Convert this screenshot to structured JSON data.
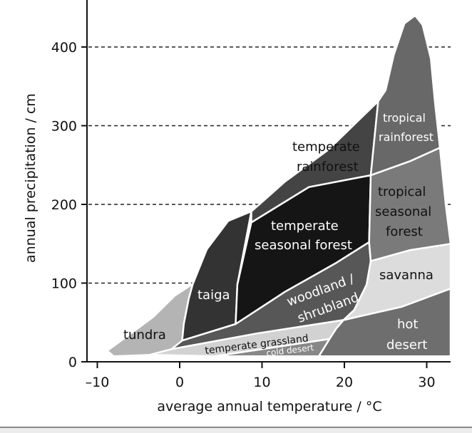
{
  "chart_data": {
    "type": "area",
    "xlabel": "average annual temperature / °C",
    "ylabel": "annual precipitation / cm",
    "xlim": [
      -11,
      33
    ],
    "ylim": [
      0,
      460
    ],
    "xticks": [
      "-10",
      "0",
      "10",
      "20",
      "30"
    ],
    "xtick_values": [
      -10,
      0,
      10,
      20,
      30
    ],
    "yticks": [
      "0",
      "100",
      "200",
      "300",
      "400"
    ],
    "ytick_values": [
      0,
      100,
      200,
      300,
      400
    ],
    "gridlines": {
      "axis": "y",
      "style": "dashed",
      "values": [
        100,
        200,
        300,
        400
      ]
    },
    "regions": [
      {
        "name": "tundra",
        "color": "#b4b4b4",
        "text_color": "#111111",
        "points": [
          [
            -8.8,
            14
          ],
          [
            -6.7,
            30
          ],
          [
            -3.2,
            57
          ],
          [
            -0.6,
            84
          ],
          [
            1.6,
            99
          ],
          [
            1.1,
            80
          ],
          [
            0.5,
            48
          ],
          [
            0.3,
            27
          ],
          [
            -0.6,
            16
          ],
          [
            -3.2,
            9
          ],
          [
            -8,
            7
          ]
        ]
      },
      {
        "name": "taiga",
        "color": "#333333",
        "text_color": "#ffffff",
        "points": [
          [
            1.6,
            99
          ],
          [
            3.3,
            143
          ],
          [
            5.9,
            179
          ],
          [
            8.7,
            191
          ],
          [
            7,
            98
          ],
          [
            6.8,
            48
          ],
          [
            0.3,
            27
          ],
          [
            0.5,
            48
          ],
          [
            1.1,
            80
          ]
        ]
      },
      {
        "name": "temperate rainforest",
        "color": "#444444",
        "text_color": "#111111",
        "points": [
          [
            8.7,
            191
          ],
          [
            12.8,
            229
          ],
          [
            18,
            269
          ],
          [
            24.1,
            331
          ],
          [
            23.2,
            237
          ],
          [
            15.7,
            222
          ],
          [
            8.7,
            177
          ]
        ]
      },
      {
        "name": "temperate seasonal forest",
        "color": "#151515",
        "text_color": "#ffffff",
        "points": [
          [
            8.7,
            177
          ],
          [
            15.7,
            222
          ],
          [
            23.2,
            237
          ],
          [
            23,
            152
          ],
          [
            18.9,
            125
          ],
          [
            12.8,
            89
          ],
          [
            6.8,
            48
          ],
          [
            7,
            98
          ]
        ]
      },
      {
        "name": "woodland / shrubland",
        "color": "#575757",
        "text_color": "#ffffff",
        "points": [
          [
            -1,
            16
          ],
          [
            0.3,
            27
          ],
          [
            6.8,
            48
          ],
          [
            12.8,
            89
          ],
          [
            18.9,
            125
          ],
          [
            23,
            152
          ],
          [
            23.2,
            128
          ],
          [
            22.7,
            98
          ],
          [
            21.2,
            66
          ],
          [
            19.9,
            53
          ],
          [
            9.4,
            36
          ]
        ]
      },
      {
        "name": "temperate grassland",
        "color": "#d2d2d2",
        "text_color": "#111111",
        "points": [
          [
            -3.6,
            9
          ],
          [
            -1,
            16
          ],
          [
            9.4,
            36
          ],
          [
            19.9,
            53
          ],
          [
            19,
            42
          ],
          [
            18.2,
            29
          ],
          [
            4.2,
            7
          ]
        ]
      },
      {
        "name": "cold desert",
        "color": "#888888",
        "text_color": "#ffffff",
        "points": [
          [
            4.2,
            7
          ],
          [
            18.2,
            29
          ],
          [
            16.9,
            7
          ]
        ]
      },
      {
        "name": "hot desert",
        "color": "#6e6e6e",
        "text_color": "#ffffff",
        "points": [
          [
            16.9,
            7
          ],
          [
            18.2,
            29
          ],
          [
            19,
            42
          ],
          [
            19.9,
            53
          ],
          [
            22.8,
            60
          ],
          [
            27,
            70
          ],
          [
            32.9,
            93
          ],
          [
            32.9,
            7
          ]
        ]
      },
      {
        "name": "savanna",
        "color": "#dcdcdc",
        "text_color": "#111111",
        "points": [
          [
            19.9,
            53
          ],
          [
            22.8,
            60
          ],
          [
            27,
            70
          ],
          [
            32.9,
            93
          ],
          [
            32.9,
            150
          ],
          [
            28,
            142
          ],
          [
            23.2,
            128
          ],
          [
            22.7,
            98
          ],
          [
            21.2,
            66
          ]
        ]
      },
      {
        "name": "tropical seasonal forest",
        "color": "#7a7a7a",
        "text_color": "#111111",
        "points": [
          [
            23.2,
            128
          ],
          [
            23,
            152
          ],
          [
            23.2,
            237
          ],
          [
            28,
            255
          ],
          [
            31.6,
            272
          ],
          [
            32.3,
            200
          ],
          [
            32.9,
            150
          ],
          [
            28,
            142
          ]
        ]
      },
      {
        "name": "tropical rainforest",
        "color": "#686868",
        "text_color": "#ffffff",
        "points": [
          [
            23.2,
            237
          ],
          [
            24.1,
            331
          ],
          [
            25,
            345
          ],
          [
            26,
            390
          ],
          [
            27.3,
            430
          ],
          [
            28.6,
            440
          ],
          [
            29.5,
            428
          ],
          [
            30.5,
            385
          ],
          [
            31,
            330
          ],
          [
            31.6,
            272
          ],
          [
            28,
            255
          ]
        ]
      }
    ],
    "labels": {
      "tundra": "tundra",
      "taiga": "taiga",
      "temperate_rainforest": [
        "temperate",
        "rainforest"
      ],
      "temperate_seasonal_forest": [
        "temperate",
        "seasonal forest"
      ],
      "woodland": [
        "woodland /",
        "shrubland"
      ],
      "temperate_grassland": "temperate grassland",
      "cold_desert": "cold desert",
      "hot_desert": [
        "hot",
        "desert"
      ],
      "savanna": "savanna",
      "tropical_seasonal_forest": [
        "tropical",
        "seasonal",
        "forest"
      ],
      "tropical_rainforest": [
        "tropical",
        "rainforest"
      ]
    }
  }
}
